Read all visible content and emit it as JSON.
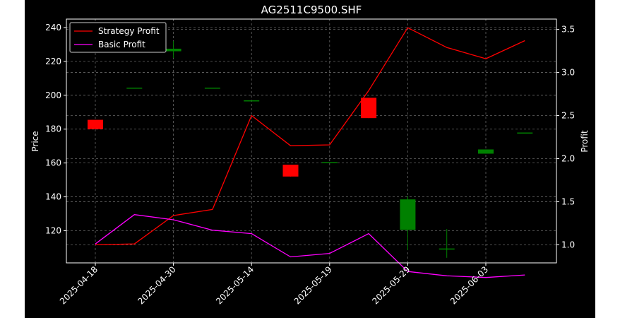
{
  "chart_data": {
    "type": "candlestick+line",
    "title": "AG2511C9500.SHF",
    "ylabel_left": "Price",
    "ylabel_right": "Profit",
    "ylim_left": [
      101,
      245
    ],
    "ylim_right": [
      0.79,
      3.62
    ],
    "yticks_left": [
      120,
      140,
      160,
      180,
      200,
      220,
      240
    ],
    "yticks_right": [
      1.0,
      1.5,
      2.0,
      2.5,
      3.0,
      3.5
    ],
    "xtick_labels": [
      "2025-04-18",
      "2025-04-30",
      "2025-05-14",
      "2025-05-19",
      "2025-05-29",
      "2025-06-03"
    ],
    "xtick_indices": [
      0,
      2,
      4,
      6,
      8,
      10
    ],
    "grid": true,
    "legend_position": "upper-left",
    "candles": [
      {
        "o": 185.5,
        "h": 185.5,
        "l": 180.0,
        "c": 180.0
      },
      {
        "o": 204.5,
        "h": 204.5,
        "l": 204.5,
        "c": 204.5
      },
      {
        "o": 226.0,
        "h": 232.0,
        "l": 222.0,
        "c": 227.5
      },
      {
        "o": 204.5,
        "h": 204.5,
        "l": 204.5,
        "c": 204.5
      },
      {
        "o": 197.0,
        "h": 197.0,
        "l": 197.0,
        "c": 197.0
      },
      {
        "o": 159.0,
        "h": 159.0,
        "l": 152.0,
        "c": 152.0
      },
      {
        "o": 160.5,
        "h": 160.5,
        "l": 160.5,
        "c": 160.5
      },
      {
        "o": 198.5,
        "h": 198.5,
        "l": 186.5,
        "c": 186.5
      },
      {
        "o": 120.5,
        "h": 140.5,
        "l": 108.5,
        "c": 138.5
      },
      {
        "o": 109.5,
        "h": 121.0,
        "l": 104.0,
        "c": 109.5
      },
      {
        "o": 165.5,
        "h": 168.0,
        "l": 165.5,
        "c": 168.0
      },
      {
        "o": 178.0,
        "h": 178.0,
        "l": 178.0,
        "c": 178.0
      }
    ],
    "series": [
      {
        "name": "Strategy Profit",
        "color": "#ff0000",
        "x": [
          0,
          1,
          2,
          3,
          4,
          5,
          6,
          7,
          8,
          9,
          10,
          11
        ],
        "values": [
          1.0,
          1.01,
          1.34,
          1.41,
          2.5,
          2.15,
          2.16,
          2.79,
          3.52,
          3.29,
          3.16,
          3.37
        ]
      },
      {
        "name": "Basic Profit",
        "color": "#ff00ff",
        "x": [
          0,
          1,
          2,
          3,
          4,
          5,
          6,
          7,
          8,
          9,
          10,
          11
        ],
        "values": [
          1.01,
          1.35,
          1.29,
          1.17,
          1.13,
          0.86,
          0.9,
          1.13,
          0.69,
          0.64,
          0.62,
          0.65
        ]
      }
    ],
    "colors": {
      "background": "#000000",
      "up": "#008000",
      "down": "#ff0000",
      "grid": "#666666",
      "axis": "#ffffff"
    }
  }
}
